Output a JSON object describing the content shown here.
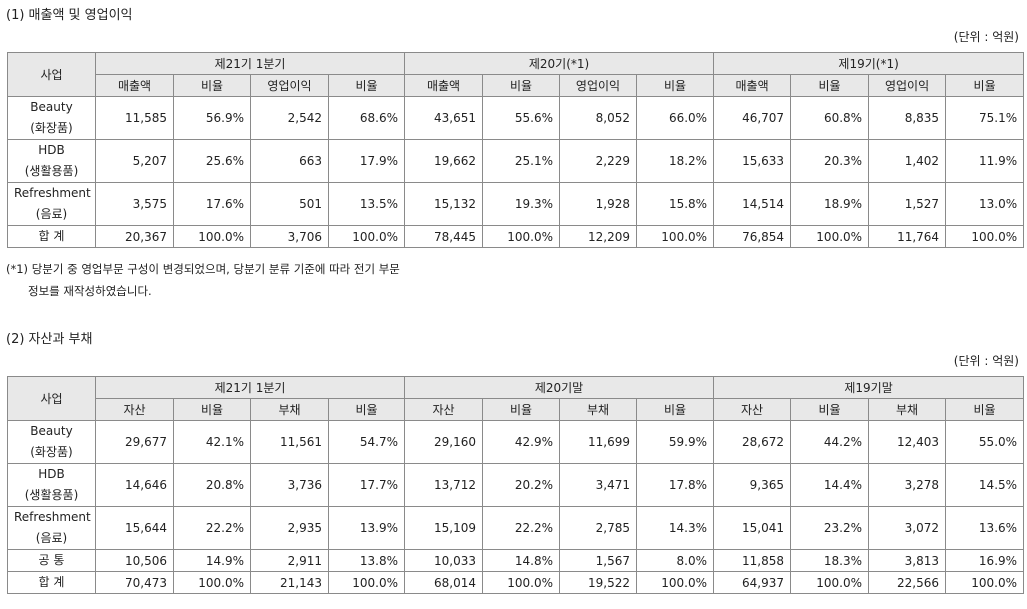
{
  "section1": {
    "title": "(1) 매출액 및 영업이익",
    "unit": "(단위 : 억원)",
    "header_biz": "사업",
    "periods": [
      "제21기 1분기",
      "제20기(*1)",
      "제19기(*1)"
    ],
    "subheaders": [
      "매출액",
      "비율",
      "영업이익",
      "비율"
    ],
    "rows": [
      {
        "name1": "Beauty",
        "name2": "(화장품)",
        "cells": [
          "11,585",
          "56.9%",
          "2,542",
          "68.6%",
          "43,651",
          "55.6%",
          "8,052",
          "66.0%",
          "46,707",
          "60.8%",
          "8,835",
          "75.1%"
        ]
      },
      {
        "name1": "HDB",
        "name2": "(생활용품)",
        "cells": [
          "5,207",
          "25.6%",
          "663",
          "17.9%",
          "19,662",
          "25.1%",
          "2,229",
          "18.2%",
          "15,633",
          "20.3%",
          "1,402",
          "11.9%"
        ]
      },
      {
        "name1": "Refreshment",
        "name2": "(음료)",
        "cells": [
          "3,575",
          "17.6%",
          "501",
          "13.5%",
          "15,132",
          "19.3%",
          "1,928",
          "15.8%",
          "14,514",
          "18.9%",
          "1,527",
          "13.0%"
        ]
      },
      {
        "name1": "합 계",
        "name2": "",
        "cells": [
          "20,367",
          "100.0%",
          "3,706",
          "100.0%",
          "78,445",
          "100.0%",
          "12,209",
          "100.0%",
          "76,854",
          "100.0%",
          "11,764",
          "100.0%"
        ]
      }
    ],
    "note_line1": "(*1) 당분기 중 영업부문 구성이 변경되었으며, 당분기 분류 기준에 따라 전기 부문",
    "note_line2": "정보를 재작성하였습니다."
  },
  "section2": {
    "title": "(2) 자산과 부채",
    "unit": "(단위 : 억원)",
    "header_biz": "사업",
    "periods": [
      "제21기 1분기",
      "제20기말",
      "제19기말"
    ],
    "subheaders": [
      "자산",
      "비율",
      "부채",
      "비율"
    ],
    "rows": [
      {
        "name1": "Beauty",
        "name2": "(화장품)",
        "cells": [
          "29,677",
          "42.1%",
          "11,561",
          "54.7%",
          "29,160",
          "42.9%",
          "11,699",
          "59.9%",
          "28,672",
          "44.2%",
          "12,403",
          "55.0%"
        ]
      },
      {
        "name1": "HDB",
        "name2": "(생활용품)",
        "cells": [
          "14,646",
          "20.8%",
          "3,736",
          "17.7%",
          "13,712",
          "20.2%",
          "3,471",
          "17.8%",
          "9,365",
          "14.4%",
          "3,278",
          "14.5%"
        ]
      },
      {
        "name1": "Refreshment",
        "name2": "(음료)",
        "cells": [
          "15,644",
          "22.2%",
          "2,935",
          "13.9%",
          "15,109",
          "22.2%",
          "2,785",
          "14.3%",
          "15,041",
          "23.2%",
          "3,072",
          "13.6%"
        ]
      },
      {
        "name1": "공 통",
        "name2": "",
        "cells": [
          "10,506",
          "14.9%",
          "2,911",
          "13.8%",
          "10,033",
          "14.8%",
          "1,567",
          "8.0%",
          "11,858",
          "18.3%",
          "3,813",
          "16.9%"
        ]
      },
      {
        "name1": "합 계",
        "name2": "",
        "cells": [
          "70,473",
          "100.0%",
          "21,143",
          "100.0%",
          "68,014",
          "100.0%",
          "19,522",
          "100.0%",
          "64,937",
          "100.0%",
          "22,566",
          "100.0%"
        ]
      }
    ]
  }
}
